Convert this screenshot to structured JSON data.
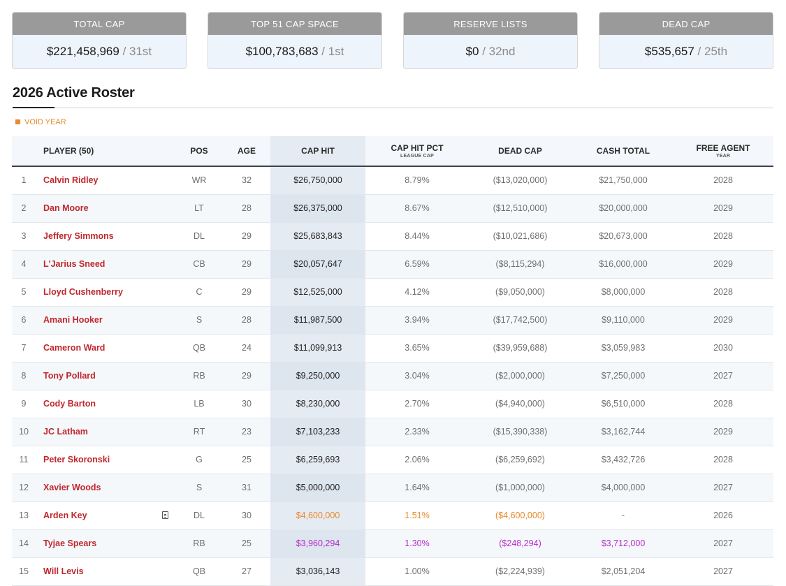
{
  "summary_cards": [
    {
      "label": "TOTAL CAP",
      "value": "$221,458,969",
      "rank": "/ 31st"
    },
    {
      "label": "TOP 51 CAP SPACE",
      "value": "$100,783,683",
      "rank": "/ 1st"
    },
    {
      "label": "RESERVE LISTS",
      "value": "$0",
      "rank": "/ 32nd"
    },
    {
      "label": "DEAD CAP",
      "value": "$535,657",
      "rank": "/ 25th"
    }
  ],
  "roster": {
    "title": "2026 Active Roster",
    "legend_void": "VOID YEAR",
    "colors": {
      "void": "#e8892b",
      "purple": "#b52bc7",
      "player": "#c0272d"
    },
    "columns": {
      "player": "PLAYER (50)",
      "pos": "POS",
      "age": "AGE",
      "cap_hit": "CAP HIT",
      "cap_hit_pct": "CAP HIT PCT",
      "cap_hit_pct_sub": "LEAGUE CAP",
      "dead_cap": "DEAD CAP",
      "cash_total": "CASH TOTAL",
      "free_agent": "FREE AGENT",
      "free_agent_sub": "YEAR"
    },
    "rows": [
      {
        "n": "1",
        "player": "Calvin Ridley",
        "pos": "WR",
        "age": "32",
        "cap_hit": "$26,750,000",
        "pct": "8.79%",
        "dead": "($13,020,000)",
        "cash": "$21,750,000",
        "fa": "2028"
      },
      {
        "n": "2",
        "player": "Dan Moore",
        "pos": "LT",
        "age": "28",
        "cap_hit": "$26,375,000",
        "pct": "8.67%",
        "dead": "($12,510,000)",
        "cash": "$20,000,000",
        "fa": "2029"
      },
      {
        "n": "3",
        "player": "Jeffery Simmons",
        "pos": "DL",
        "age": "29",
        "cap_hit": "$25,683,843",
        "pct": "8.44%",
        "dead": "($10,021,686)",
        "cash": "$20,673,000",
        "fa": "2028"
      },
      {
        "n": "4",
        "player": "L'Jarius Sneed",
        "pos": "CB",
        "age": "29",
        "cap_hit": "$20,057,647",
        "pct": "6.59%",
        "dead": "($8,115,294)",
        "cash": "$16,000,000",
        "fa": "2029"
      },
      {
        "n": "5",
        "player": "Lloyd Cushenberry",
        "pos": "C",
        "age": "29",
        "cap_hit": "$12,525,000",
        "pct": "4.12%",
        "dead": "($9,050,000)",
        "cash": "$8,000,000",
        "fa": "2028"
      },
      {
        "n": "6",
        "player": "Amani Hooker",
        "pos": "S",
        "age": "28",
        "cap_hit": "$11,987,500",
        "pct": "3.94%",
        "dead": "($17,742,500)",
        "cash": "$9,110,000",
        "fa": "2029"
      },
      {
        "n": "7",
        "player": "Cameron Ward",
        "pos": "QB",
        "age": "24",
        "cap_hit": "$11,099,913",
        "pct": "3.65%",
        "dead": "($39,959,688)",
        "cash": "$3,059,983",
        "fa": "2030"
      },
      {
        "n": "8",
        "player": "Tony Pollard",
        "pos": "RB",
        "age": "29",
        "cap_hit": "$9,250,000",
        "pct": "3.04%",
        "dead": "($2,000,000)",
        "cash": "$7,250,000",
        "fa": "2027"
      },
      {
        "n": "9",
        "player": "Cody Barton",
        "pos": "LB",
        "age": "30",
        "cap_hit": "$8,230,000",
        "pct": "2.70%",
        "dead": "($4,940,000)",
        "cash": "$6,510,000",
        "fa": "2028"
      },
      {
        "n": "10",
        "player": "JC Latham",
        "pos": "RT",
        "age": "23",
        "cap_hit": "$7,103,233",
        "pct": "2.33%",
        "dead": "($15,390,338)",
        "cash": "$3,162,744",
        "fa": "2029"
      },
      {
        "n": "11",
        "player": "Peter Skoronski",
        "pos": "G",
        "age": "25",
        "cap_hit": "$6,259,693",
        "pct": "2.06%",
        "dead": "($6,259,692)",
        "cash": "$3,432,726",
        "fa": "2028"
      },
      {
        "n": "12",
        "player": "Xavier Woods",
        "pos": "S",
        "age": "31",
        "cap_hit": "$5,000,000",
        "pct": "1.64%",
        "dead": "($1,000,000)",
        "cash": "$4,000,000",
        "fa": "2027"
      },
      {
        "n": "13",
        "player": "Arden Key",
        "pos": "DL",
        "age": "30",
        "cap_hit": "$4,600,000",
        "pct": "1.51%",
        "dead": "($4,600,000)",
        "cash": "-",
        "fa": "2026",
        "style": "void",
        "note_icon": "note-icon"
      },
      {
        "n": "14",
        "player": "Tyjae Spears",
        "pos": "RB",
        "age": "25",
        "cap_hit": "$3,960,294",
        "pct": "1.30%",
        "dead": "($248,294)",
        "cash": "$3,712,000",
        "fa": "2027",
        "style": "purple"
      },
      {
        "n": "15",
        "player": "Will Levis",
        "pos": "QB",
        "age": "27",
        "cap_hit": "$3,036,143",
        "pct": "1.00%",
        "dead": "($2,224,939)",
        "cash": "$2,051,204",
        "fa": "2027"
      }
    ]
  }
}
